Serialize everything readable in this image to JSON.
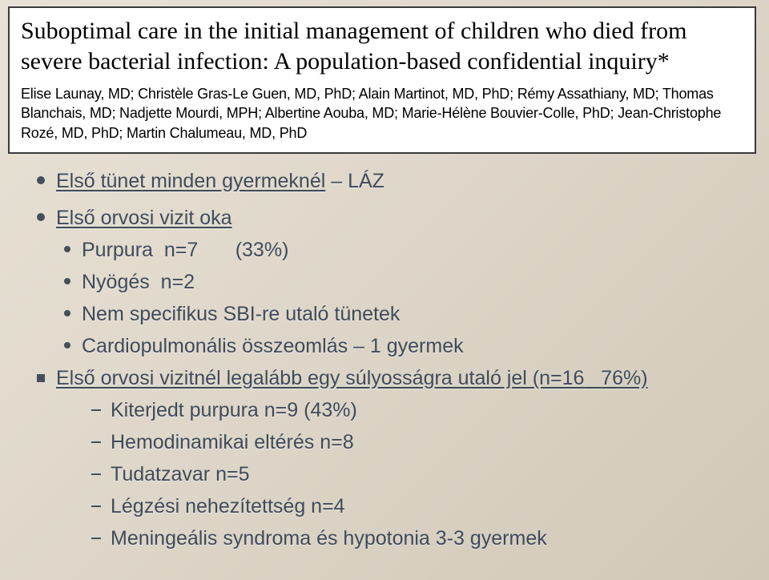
{
  "header": {
    "title": "Suboptimal care in the initial management of children who died from severe bacterial infection: A population-based confidential inquiry*",
    "authors": "Elise Launay, MD; Christèle Gras-Le Guen, MD, PhD; Alain Martinot, MD, PhD; Rémy Assathiany, MD; Thomas Blanchais, MD; Nadjette Mourdi, MPH; Albertine Aouba, MD; Marie-Hélène Bouvier-Colle, PhD; Jean-Christophe Rozé, MD, PhD; Martin Chalumeau, MD, PhD"
  },
  "l1_prefix": "Első tünet minden gyermeknél",
  "l1_suffix": " – LÁZ",
  "l2": "Első orvosi vizit oka",
  "l3_label": "Purpura",
  "l3_n": "n=7",
  "l3_pct": "(33%)",
  "l4_label": "Nyögés",
  "l4_n": "n=2",
  "l5": "Nem specifikus SBI-re utaló tünetek",
  "l6": "Cardiopulmonális összeomlás – 1 gyermek",
  "l7_prefix": "Első orvosi vizitnél legalább egy súlyosságra utaló jel (n=16",
  "l7_suffix": "76%)",
  "l8": "Kiterjedt purpura  n=9 (43%)",
  "l9": "Hemodinamikai eltérés n=8",
  "l10": "Tudatzavar  n=5",
  "l11": "Légzési nehezítettség n=4",
  "l12": "Meningeális syndroma és hypotonia 3-3 gyermek",
  "colors": {
    "text": "#3f4a5a",
    "bg_start": "#e8e2d6",
    "bg_end": "#d0c8b8",
    "box_bg": "#ffffff",
    "box_border": "#3a3a3a"
  }
}
